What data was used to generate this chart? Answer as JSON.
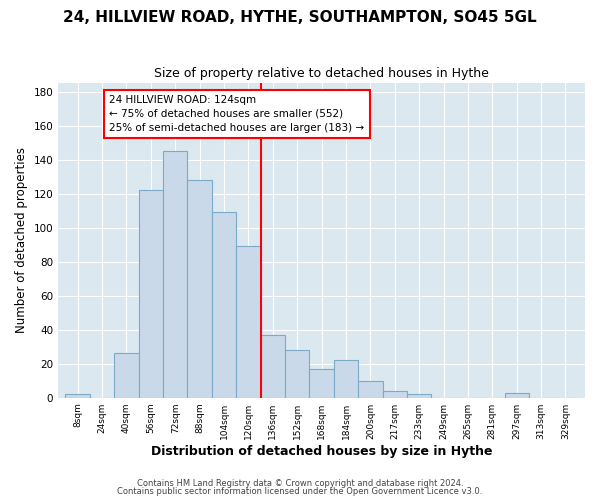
{
  "title": "24, HILLVIEW ROAD, HYTHE, SOUTHAMPTON, SO45 5GL",
  "subtitle": "Size of property relative to detached houses in Hythe",
  "xlabel": "Distribution of detached houses by size in Hythe",
  "ylabel": "Number of detached properties",
  "bar_color": "#c9d9ea",
  "bar_edge_color": "#7aaac8",
  "plot_bg_color": "#dce8f0",
  "fig_bg_color": "#ffffff",
  "grid_color": "#ffffff",
  "bin_labels": [
    "8sqm",
    "24sqm",
    "40sqm",
    "56sqm",
    "72sqm",
    "88sqm",
    "104sqm",
    "120sqm",
    "136sqm",
    "152sqm",
    "168sqm",
    "184sqm",
    "200sqm",
    "217sqm",
    "233sqm",
    "249sqm",
    "265sqm",
    "281sqm",
    "297sqm",
    "313sqm",
    "329sqm"
  ],
  "bin_values": [
    2,
    0,
    26,
    122,
    145,
    128,
    109,
    89,
    37,
    28,
    17,
    22,
    10,
    4,
    2,
    0,
    0,
    0,
    3,
    0,
    0
  ],
  "vline_bin_idx": 7,
  "annotation_title": "24 HILLVIEW ROAD: 124sqm",
  "annotation_line1": "← 75% of detached houses are smaller (552)",
  "annotation_line2": "25% of semi-detached houses are larger (183) →",
  "ylim": [
    0,
    185
  ],
  "yticks": [
    0,
    20,
    40,
    60,
    80,
    100,
    120,
    140,
    160,
    180
  ],
  "footer1": "Contains HM Land Registry data © Crown copyright and database right 2024.",
  "footer2": "Contains public sector information licensed under the Open Government Licence v3.0."
}
